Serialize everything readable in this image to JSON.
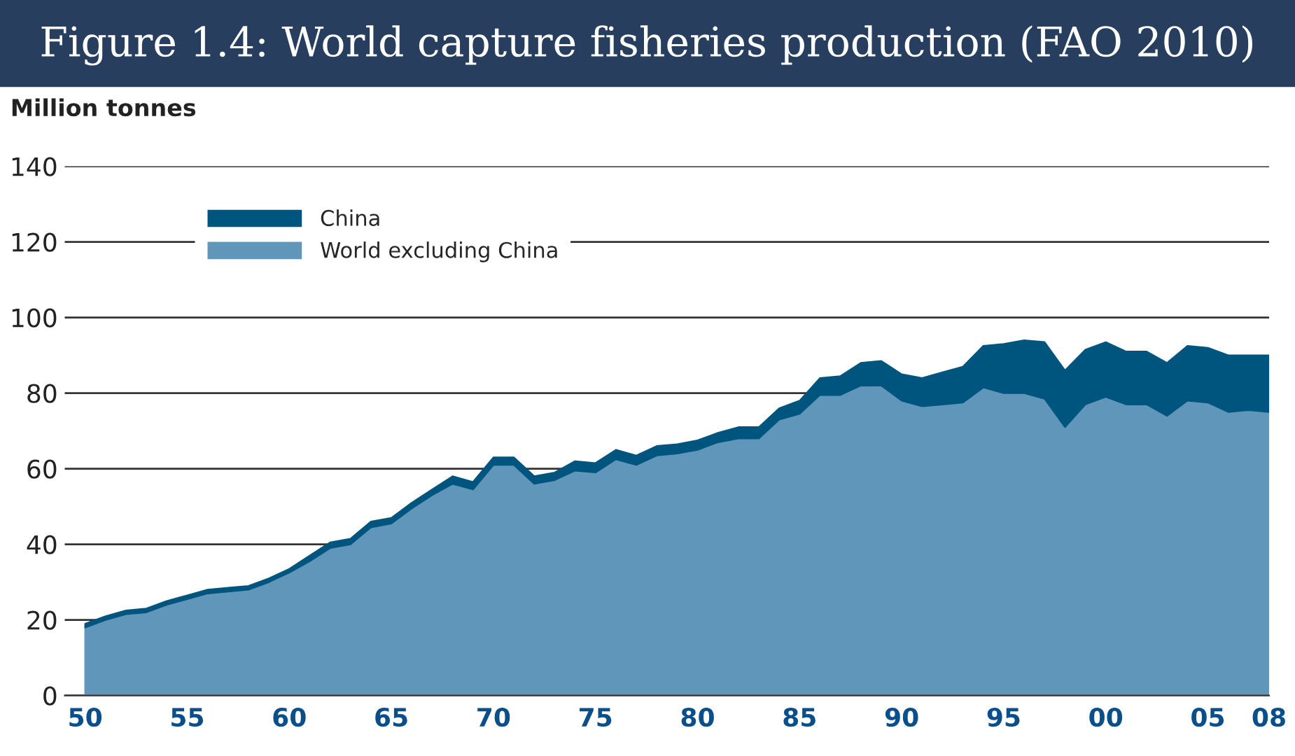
{
  "chart_data": {
    "type": "area",
    "stacked": true,
    "title": "Figure 1.4: World capture fisheries production (FAO 2010)",
    "ylabel": "Million tonnes",
    "x": [
      1950,
      1951,
      1952,
      1953,
      1954,
      1955,
      1956,
      1957,
      1958,
      1959,
      1960,
      1961,
      1962,
      1963,
      1964,
      1965,
      1966,
      1967,
      1968,
      1969,
      1970,
      1971,
      1972,
      1973,
      1974,
      1975,
      1976,
      1977,
      1978,
      1979,
      1980,
      1981,
      1982,
      1983,
      1984,
      1985,
      1986,
      1987,
      1988,
      1989,
      1990,
      1991,
      1992,
      1993,
      1994,
      1995,
      1996,
      1997,
      1998,
      1999,
      2000,
      2001,
      2002,
      2003,
      2004,
      2005,
      2006,
      2007,
      2008
    ],
    "series": [
      {
        "name": "World excluding China",
        "color": "#6096ba",
        "values": [
          18,
          20,
          21.5,
          22,
          24,
          25.5,
          27,
          27.5,
          28,
          30,
          32.5,
          35.5,
          39,
          40,
          44.5,
          45.5,
          49.5,
          53,
          56,
          54.5,
          61,
          61,
          56,
          57,
          59.5,
          59,
          62.5,
          61,
          63.5,
          64,
          65,
          67,
          68,
          68,
          73,
          74.5,
          79.5,
          79.5,
          82,
          82,
          78,
          76.5,
          77,
          77.5,
          81.5,
          80,
          80,
          78.5,
          71,
          77,
          79,
          77,
          77,
          74,
          78,
          77.5,
          75,
          75.5,
          75
        ]
      },
      {
        "name": "China",
        "color": "#00557f",
        "values": [
          1,
          1,
          1,
          1,
          1,
          1,
          1,
          1,
          1,
          1,
          1,
          1.5,
          1.5,
          1.5,
          1.5,
          1.5,
          1.5,
          1.5,
          2,
          2,
          2,
          2,
          2,
          2,
          2.5,
          2.5,
          2.5,
          2.5,
          2.5,
          2.5,
          2.5,
          2.5,
          3,
          3,
          3,
          3.5,
          4.5,
          5,
          6,
          6.5,
          7,
          7.5,
          8.5,
          9.5,
          11,
          13,
          14,
          15,
          15,
          14.5,
          14.5,
          14,
          14,
          14,
          14.5,
          14.5,
          15,
          14.5,
          15
        ]
      }
    ],
    "xlim": [
      1949,
      2008
    ],
    "xticks": [
      {
        "value": 1950,
        "label": "50"
      },
      {
        "value": 1955,
        "label": "55"
      },
      {
        "value": 1960,
        "label": "60"
      },
      {
        "value": 1965,
        "label": "65"
      },
      {
        "value": 1970,
        "label": "70"
      },
      {
        "value": 1975,
        "label": "75"
      },
      {
        "value": 1980,
        "label": "80"
      },
      {
        "value": 1985,
        "label": "85"
      },
      {
        "value": 1990,
        "label": "90"
      },
      {
        "value": 1995,
        "label": "95"
      },
      {
        "value": 2000,
        "label": "00"
      },
      {
        "value": 2005,
        "label": "05"
      },
      {
        "value": 2008,
        "label": "08"
      }
    ],
    "ylim": [
      0,
      140
    ],
    "yticks": [
      0,
      20,
      40,
      60,
      80,
      100,
      120,
      140
    ],
    "grid": "y",
    "legend": "top left"
  }
}
